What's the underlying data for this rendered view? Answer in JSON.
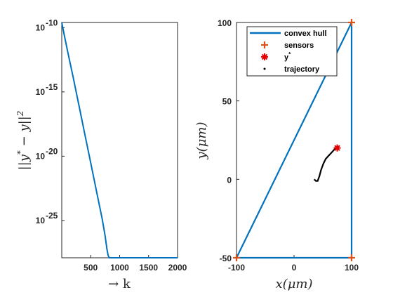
{
  "chart_data": [
    {
      "type": "line",
      "xlabel": "→ k",
      "ylabel": "||y* − y||²",
      "ylabel_main": "||y",
      "ylabel_sup1": "*",
      "ylabel_mid": " − y||",
      "ylabel_sup2": "2",
      "xlim": [
        1,
        2000
      ],
      "ylim_log10": [
        -27.9,
        -9.6
      ],
      "yscale": "log",
      "xticks": [
        500,
        1000,
        1500,
        2000
      ],
      "xtick_labels": [
        "500",
        "1000",
        "1500",
        "2000"
      ],
      "yticks_log10": [
        -10,
        -15,
        -20,
        -25
      ],
      "ytick_base": "10",
      "ytick_exponents": [
        "-10",
        "-15",
        "-20",
        "-25"
      ],
      "series": [
        {
          "color": "#0072BD",
          "x": [
            1,
            50,
            100,
            200,
            300,
            400,
            500,
            600,
            700,
            750,
            780,
            800,
            820,
            900,
            1000,
            1500,
            2000
          ],
          "y_log10": [
            -9.6,
            -10.7,
            -11.8,
            -13.9,
            -16.1,
            -18.3,
            -20.5,
            -22.7,
            -24.9,
            -26.2,
            -27.2,
            -27.7,
            -27.9,
            -27.9,
            -27.9,
            -27.9,
            -27.9
          ]
        }
      ]
    },
    {
      "type": "scatter",
      "xlabel": "x(μm)",
      "ylabel": "y(μm)",
      "xlim": [
        -100,
        100
      ],
      "ylim": [
        -50,
        100
      ],
      "xticks": [
        -100,
        0,
        100
      ],
      "xtick_labels": [
        "-100",
        "0",
        "100"
      ],
      "yticks": [
        -50,
        0,
        50,
        100
      ],
      "ytick_labels": [
        "-50",
        "0",
        "50",
        "100"
      ],
      "legend": {
        "placement": "top-right",
        "entries": [
          {
            "label": "convex hull",
            "color": "#0072BD",
            "marker": "line"
          },
          {
            "label": "sensors",
            "color": "#D95319",
            "marker": "plus"
          },
          {
            "label": "y",
            "label_sup": "*",
            "color": "#E00000",
            "marker": "star"
          },
          {
            "label": "trajectory",
            "color": "#000000",
            "marker": "dot"
          }
        ]
      },
      "convex_hull": [
        [
          -100,
          -50
        ],
        [
          100,
          100
        ],
        [
          100,
          -50
        ],
        [
          -100,
          -50
        ]
      ],
      "sensors": [
        [
          -100,
          -50
        ],
        [
          100,
          100
        ],
        [
          100,
          -50
        ]
      ],
      "y_star": [
        75,
        20
      ],
      "trajectory": [
        [
          35,
          0
        ],
        [
          38,
          -1
        ],
        [
          41,
          -1
        ],
        [
          44,
          2
        ],
        [
          47,
          6
        ],
        [
          51,
          10
        ],
        [
          55,
          13
        ],
        [
          60,
          15
        ],
        [
          65,
          17
        ],
        [
          70,
          19
        ],
        [
          73,
          20
        ],
        [
          75,
          20
        ]
      ]
    }
  ]
}
